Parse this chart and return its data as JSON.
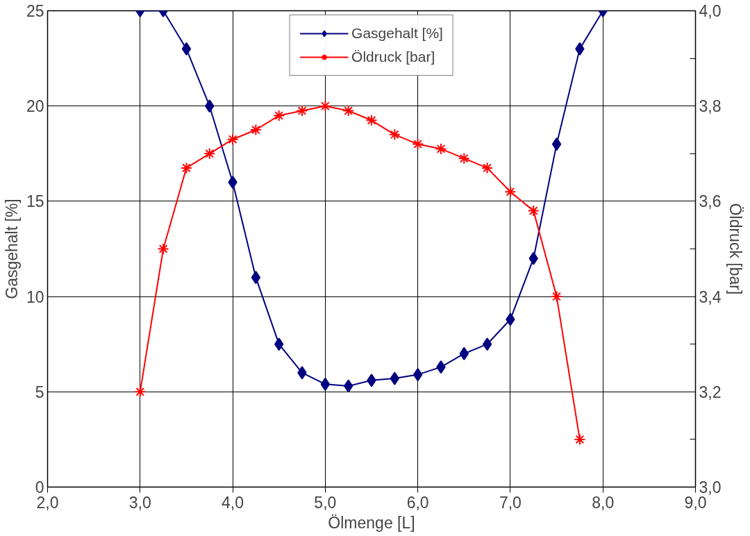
{
  "chart_data": {
    "type": "line",
    "xlabel": "Ölmenge [L]",
    "ylabel": "Gasgehalt [%]",
    "y2label": "Öldruck [bar]",
    "xlim": [
      2,
      9
    ],
    "xticks": [
      {
        "value": 2,
        "label": "2,0"
      },
      {
        "value": 3,
        "label": "3,0"
      },
      {
        "value": 4,
        "label": "4,0"
      },
      {
        "value": 5,
        "label": "5,0"
      },
      {
        "value": 6,
        "label": "6,0"
      },
      {
        "value": 7,
        "label": "7,0"
      },
      {
        "value": 8,
        "label": "8,0"
      },
      {
        "value": 9,
        "label": "9,0"
      }
    ],
    "ylim": [
      0,
      25
    ],
    "yticks": [
      0,
      5,
      10,
      15,
      20,
      25
    ],
    "y2lim": [
      3,
      4
    ],
    "y2ticks": [
      {
        "value": 3,
        "label": "3,0"
      },
      {
        "value": 3.1,
        "label": null
      },
      {
        "value": 3.2,
        "label": "3,2"
      },
      {
        "value": 3.3,
        "label": null
      },
      {
        "value": 3.4,
        "label": "3,4"
      },
      {
        "value": 3.5,
        "label": null
      },
      {
        "value": 3.6,
        "label": "3,6"
      },
      {
        "value": 3.7,
        "label": null
      },
      {
        "value": 3.8,
        "label": "3,8"
      },
      {
        "value": 3.9,
        "label": null
      },
      {
        "value": 4,
        "label": "4,0"
      }
    ],
    "x": [
      3.0,
      3.25,
      3.5,
      3.75,
      4.0,
      4.25,
      4.5,
      4.75,
      5.0,
      5.25,
      5.5,
      5.75,
      6.0,
      6.25,
      6.5,
      6.75,
      7.0,
      7.25,
      7.5,
      7.75,
      8.0
    ],
    "grid": true,
    "legend": "top",
    "line_style": "solid",
    "series": [
      {
        "name": "Gasgehalt [%]",
        "color": "#000080",
        "marker": "diamond",
        "values": [
          25,
          25,
          23,
          20,
          16,
          11,
          7.5,
          6.0,
          5.4,
          5.3,
          5.6,
          5.7,
          5.9,
          6.3,
          7.0,
          7.5,
          8.8,
          12,
          18,
          23,
          25
        ]
      },
      {
        "name": "Öldruck [bar]",
        "color": "#ff0000",
        "marker": "cross",
        "axis": "y2",
        "values": [
          3.2,
          3.5,
          3.67,
          3.7,
          3.73,
          3.75,
          3.78,
          3.79,
          3.8,
          3.79,
          3.77,
          3.74,
          3.72,
          3.71,
          3.69,
          3.67,
          3.62,
          3.58,
          3.4,
          3.1,
          null
        ]
      }
    ]
  }
}
